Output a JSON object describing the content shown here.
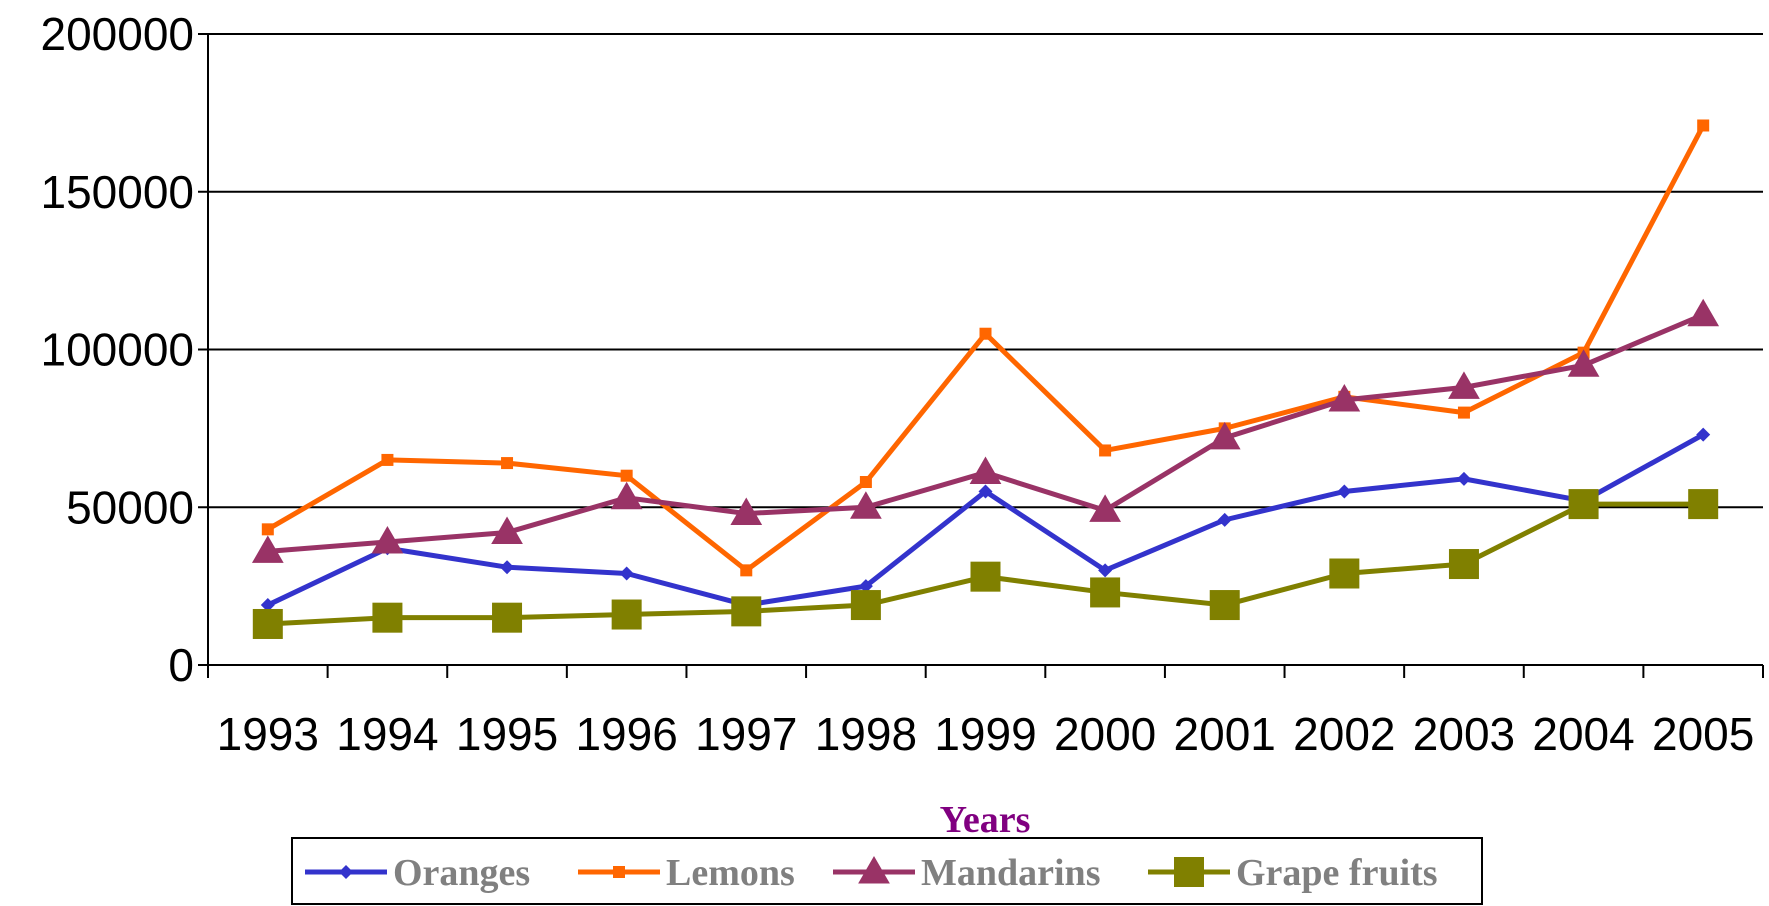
{
  "chart_data": {
    "type": "line",
    "x_label": "Years",
    "categories": [
      "1993",
      "1994",
      "1995",
      "1996",
      "1997",
      "1998",
      "1999",
      "2000",
      "2001",
      "2002",
      "2003",
      "2004",
      "2005"
    ],
    "series": [
      {
        "name": "Oranges",
        "color": "#3333cc",
        "values": [
          19000,
          37000,
          31000,
          29000,
          19000,
          25000,
          55000,
          30000,
          46000,
          55000,
          59000,
          52000,
          73000
        ]
      },
      {
        "name": "Lemons",
        "color": "#ff6600",
        "values": [
          43000,
          65000,
          64000,
          60000,
          30000,
          58000,
          105000,
          68000,
          75000,
          85000,
          80000,
          99000,
          171000
        ]
      },
      {
        "name": "Mandarins",
        "color": "#993366",
        "values": [
          36000,
          39000,
          42000,
          53000,
          48000,
          50000,
          61000,
          49000,
          72000,
          84000,
          88000,
          95000,
          111000
        ]
      },
      {
        "name": "Grape fruits",
        "color": "#808000",
        "values": [
          13000,
          15000,
          15000,
          16000,
          17000,
          19000,
          28000,
          23000,
          19000,
          29000,
          32000,
          51000,
          51000
        ]
      }
    ],
    "ylim": [
      0,
      200000
    ],
    "yticks": [
      0,
      50000,
      100000,
      150000,
      200000
    ],
    "grid": true,
    "legend": "bottom"
  }
}
